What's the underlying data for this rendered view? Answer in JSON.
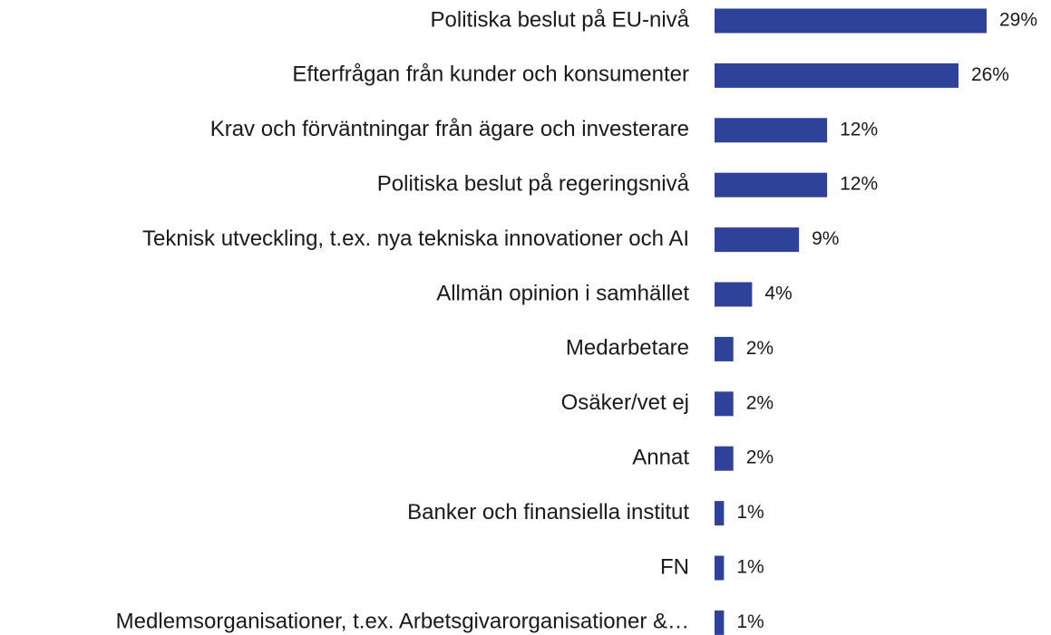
{
  "chart_data": {
    "type": "barh",
    "categories": [
      "Politiska beslut på EU-nivå",
      "Efterfrågan från kunder och konsumenter",
      "Krav och förväntningar från ägare och investerare",
      "Politiska beslut på regeringsnivå",
      "Teknisk utveckling, t.ex. nya tekniska innovationer och AI",
      "Allmän opinion i samhället",
      "Medarbetare",
      "Osäker/vet ej",
      "Annat",
      "Banker och finansiella institut",
      "FN",
      "Medlemsorganisationer, t.ex. Arbetsgivarorganisationer &…"
    ],
    "values": [
      29,
      26,
      12,
      12,
      9,
      4,
      2,
      2,
      2,
      1,
      1,
      1
    ],
    "value_labels": [
      "29%",
      "26%",
      "12%",
      "12%",
      "9%",
      "4%",
      "2%",
      "2%",
      "2%",
      "1%",
      "1%",
      "1%"
    ],
    "color": "#2f429a"
  }
}
